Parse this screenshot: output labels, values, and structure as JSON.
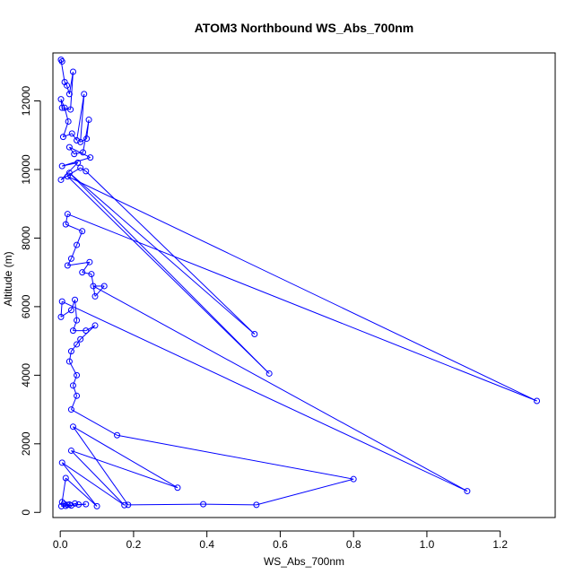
{
  "chart_data": {
    "type": "line",
    "title": "ATOM3 Northbound WS_Abs_700nm",
    "xlabel": "WS_Abs_700nm",
    "ylabel": "Altitude (m)",
    "xlim": [
      -0.02,
      1.35
    ],
    "ylim": [
      -150,
      13400
    ],
    "x_ticks": [
      0.0,
      0.2,
      0.4,
      0.6,
      0.8,
      1.0,
      1.2
    ],
    "x_tick_labels": [
      "0.0",
      "0.2",
      "0.4",
      "0.6",
      "0.8",
      "1.0",
      "1.2"
    ],
    "y_ticks": [
      0,
      2000,
      4000,
      6000,
      8000,
      10000,
      12000
    ],
    "y_tick_labels": [
      "0",
      "2000",
      "4000",
      "6000",
      "8000",
      "10000",
      "12000"
    ],
    "grid": false,
    "series_color": "#0000ff",
    "marker": "open-circle",
    "series": [
      {
        "points": [
          [
            0.005,
            13150
          ],
          [
            0.002,
            13200
          ],
          [
            0.012,
            12550
          ],
          [
            0.018,
            12450
          ],
          [
            0.025,
            12200
          ],
          [
            0.035,
            12850
          ],
          [
            0.028,
            11750
          ],
          [
            0.005,
            11800
          ],
          [
            0.002,
            12050
          ],
          [
            0.012,
            11800
          ],
          [
            0.022,
            11400
          ],
          [
            0.008,
            10950
          ],
          [
            0.032,
            11050
          ],
          [
            0.045,
            10850
          ],
          [
            0.065,
            12200
          ],
          [
            0.055,
            10800
          ],
          [
            0.072,
            10900
          ],
          [
            0.078,
            11450
          ],
          [
            0.062,
            10500
          ],
          [
            0.038,
            10450
          ],
          [
            0.025,
            10650
          ],
          [
            0.082,
            10350
          ],
          [
            0.005,
            10100
          ],
          [
            0.048,
            10200
          ],
          [
            0.002,
            9700
          ],
          [
            0.055,
            10050
          ],
          [
            0.07,
            9950
          ],
          [
            0.53,
            5200
          ],
          [
            0.025,
            9900
          ],
          [
            0.57,
            4050
          ],
          [
            0.02,
            9800
          ],
          [
            1.3,
            3250
          ],
          [
            0.02,
            8700
          ],
          [
            0.015,
            8400
          ],
          [
            0.06,
            8200
          ],
          [
            0.045,
            7800
          ],
          [
            0.03,
            7400
          ],
          [
            0.02,
            7200
          ],
          [
            0.08,
            7300
          ],
          [
            0.06,
            7000
          ],
          [
            0.085,
            6950
          ],
          [
            0.095,
            6300
          ],
          [
            0.12,
            6600
          ],
          [
            0.09,
            6600
          ],
          [
            1.11,
            620
          ],
          [
            0.005,
            6150
          ],
          [
            0.002,
            5700
          ],
          [
            0.03,
            5900
          ],
          [
            0.04,
            6200
          ],
          [
            0.045,
            5600
          ],
          [
            0.035,
            5300
          ],
          [
            0.07,
            5300
          ],
          [
            0.095,
            5450
          ],
          [
            0.055,
            5050
          ],
          [
            0.045,
            4900
          ],
          [
            0.03,
            4700
          ],
          [
            0.025,
            4400
          ],
          [
            0.045,
            4000
          ],
          [
            0.035,
            3700
          ],
          [
            0.045,
            3400
          ],
          [
            0.03,
            3000
          ],
          [
            0.155,
            2250
          ],
          [
            0.8,
            970
          ],
          [
            0.535,
            220
          ],
          [
            0.39,
            240
          ],
          [
            0.185,
            220
          ],
          [
            0.035,
            2500
          ],
          [
            0.32,
            720
          ],
          [
            0.03,
            1800
          ],
          [
            0.175,
            210
          ],
          [
            0.005,
            1450
          ],
          [
            0.1,
            180
          ],
          [
            0.015,
            1000
          ],
          [
            0.005,
            300
          ],
          [
            0.01,
            250
          ],
          [
            0.02,
            220
          ],
          [
            0.03,
            200
          ],
          [
            0.04,
            260
          ],
          [
            0.05,
            230
          ],
          [
            0.07,
            240
          ],
          [
            0.003,
            180
          ],
          [
            0.015,
            190
          ],
          [
            0.025,
            230
          ]
        ]
      }
    ]
  }
}
